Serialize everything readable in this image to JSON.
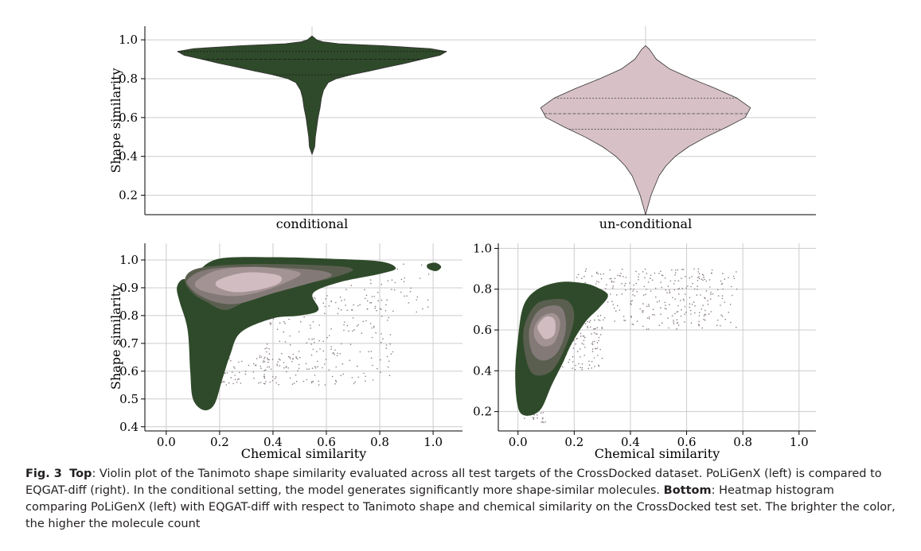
{
  "colors": {
    "conditional": "#2f4a2a",
    "unconditional": "#d7c1c6",
    "scatter": "#8a7d84",
    "grid": "#cccccc"
  },
  "chart_data": [
    {
      "type": "violin",
      "ylabel": "Shape similarity",
      "categories": [
        "conditional",
        "un-conditional"
      ],
      "yticks": [
        "0.2",
        "0.4",
        "0.6",
        "0.8",
        "1.0"
      ],
      "ylim": [
        0.1,
        1.07
      ],
      "series": [
        {
          "name": "conditional",
          "min": 0.41,
          "max": 1.02,
          "q1": 0.82,
          "median": 0.9,
          "q3": 0.94,
          "profile": [
            [
              0.41,
              0.0
            ],
            [
              0.45,
              0.02
            ],
            [
              0.5,
              0.025
            ],
            [
              0.55,
              0.035
            ],
            [
              0.6,
              0.045
            ],
            [
              0.65,
              0.06
            ],
            [
              0.7,
              0.07
            ],
            [
              0.74,
              0.085
            ],
            [
              0.78,
              0.12
            ],
            [
              0.8,
              0.18
            ],
            [
              0.82,
              0.29
            ],
            [
              0.84,
              0.43
            ],
            [
              0.86,
              0.56
            ],
            [
              0.88,
              0.7
            ],
            [
              0.9,
              0.82
            ],
            [
              0.92,
              0.95
            ],
            [
              0.94,
              1.0
            ],
            [
              0.955,
              0.88
            ],
            [
              0.97,
              0.52
            ],
            [
              0.98,
              0.2
            ],
            [
              0.99,
              0.08
            ],
            [
              1.0,
              0.035
            ],
            [
              1.02,
              0.0
            ]
          ]
        },
        {
          "name": "un-conditional",
          "min": 0.1,
          "max": 0.97,
          "q1": 0.54,
          "median": 0.62,
          "q3": 0.7,
          "profile": [
            [
              0.1,
              0.0
            ],
            [
              0.15,
              0.02
            ],
            [
              0.2,
              0.04
            ],
            [
              0.25,
              0.07
            ],
            [
              0.3,
              0.1
            ],
            [
              0.35,
              0.15
            ],
            [
              0.4,
              0.22
            ],
            [
              0.45,
              0.32
            ],
            [
              0.5,
              0.45
            ],
            [
              0.55,
              0.6
            ],
            [
              0.6,
              0.74
            ],
            [
              0.65,
              0.78
            ],
            [
              0.7,
              0.68
            ],
            [
              0.75,
              0.52
            ],
            [
              0.8,
              0.34
            ],
            [
              0.85,
              0.18
            ],
            [
              0.9,
              0.08
            ],
            [
              0.95,
              0.03
            ],
            [
              0.97,
              0.0
            ]
          ]
        }
      ]
    },
    {
      "type": "density",
      "xlabel": "Chemical similarity",
      "ylabel": "Shape similarity",
      "xticks": [
        "0.0",
        "0.2",
        "0.4",
        "0.6",
        "0.8",
        "1.0"
      ],
      "yticks": [
        "0.4",
        "0.5",
        "0.6",
        "0.7",
        "0.8",
        "0.9",
        "1.0"
      ],
      "xlim": [
        -0.08,
        1.11
      ],
      "ylim": [
        0.385,
        1.06
      ],
      "levels": [
        {
          "color": "#2f4a2a",
          "outline": [
            [
              0.1,
              0.93
            ],
            [
              0.12,
              0.96
            ],
            [
              0.2,
              1.005
            ],
            [
              0.4,
              1.01
            ],
            [
              0.6,
              1.005
            ],
            [
              0.8,
              0.995
            ],
            [
              0.86,
              0.97
            ],
            [
              0.8,
              0.95
            ],
            [
              0.65,
              0.92
            ],
            [
              0.55,
              0.88
            ],
            [
              0.57,
              0.82
            ],
            [
              0.5,
              0.8
            ],
            [
              0.4,
              0.79
            ],
            [
              0.28,
              0.74
            ],
            [
              0.24,
              0.66
            ],
            [
              0.21,
              0.57
            ],
            [
              0.18,
              0.48
            ],
            [
              0.14,
              0.46
            ],
            [
              0.1,
              0.5
            ],
            [
              0.09,
              0.6
            ],
            [
              0.08,
              0.75
            ],
            [
              0.05,
              0.85
            ],
            [
              0.04,
              0.9
            ],
            [
              0.06,
              0.93
            ]
          ]
        },
        {
          "color": "#2f4a2a",
          "outline": [
            [
              0.98,
              0.97
            ],
            [
              1.01,
              0.96
            ],
            [
              1.03,
              0.975
            ],
            [
              1.01,
              0.99
            ],
            [
              0.98,
              0.985
            ]
          ]
        },
        {
          "color": "#5a5e4f",
          "outline": [
            [
              0.07,
              0.93
            ],
            [
              0.12,
              0.97
            ],
            [
              0.3,
              0.985
            ],
            [
              0.6,
              0.98
            ],
            [
              0.7,
              0.965
            ],
            [
              0.6,
              0.93
            ],
            [
              0.45,
              0.9
            ],
            [
              0.3,
              0.85
            ],
            [
              0.22,
              0.82
            ],
            [
              0.15,
              0.85
            ],
            [
              0.1,
              0.88
            ]
          ]
        },
        {
          "color": "#837a78",
          "outline": [
            [
              0.08,
              0.93
            ],
            [
              0.15,
              0.965
            ],
            [
              0.3,
              0.975
            ],
            [
              0.55,
              0.965
            ],
            [
              0.62,
              0.945
            ],
            [
              0.55,
              0.92
            ],
            [
              0.4,
              0.88
            ],
            [
              0.28,
              0.845
            ],
            [
              0.2,
              0.845
            ],
            [
              0.13,
              0.87
            ],
            [
              0.09,
              0.9
            ]
          ]
        },
        {
          "color": "#a49394",
          "outline": [
            [
              0.12,
              0.93
            ],
            [
              0.2,
              0.965
            ],
            [
              0.35,
              0.975
            ],
            [
              0.5,
              0.955
            ],
            [
              0.45,
              0.92
            ],
            [
              0.35,
              0.885
            ],
            [
              0.25,
              0.87
            ],
            [
              0.15,
              0.885
            ],
            [
              0.11,
              0.905
            ]
          ]
        },
        {
          "color": "#d1bcc2",
          "outline": [
            [
              0.2,
              0.93
            ],
            [
              0.3,
              0.955
            ],
            [
              0.42,
              0.945
            ],
            [
              0.42,
              0.915
            ],
            [
              0.33,
              0.89
            ],
            [
              0.25,
              0.885
            ],
            [
              0.19,
              0.905
            ]
          ]
        }
      ],
      "scatter_regions": [
        {
          "x": [
            0.35,
            0.85
          ],
          "y": [
            0.55,
            0.88
          ],
          "n": 220
        },
        {
          "x": [
            0.15,
            0.5
          ],
          "y": [
            0.55,
            0.65
          ],
          "n": 90
        },
        {
          "x": [
            0.6,
            0.99
          ],
          "y": [
            0.8,
            0.99
          ],
          "n": 70
        }
      ]
    },
    {
      "type": "density",
      "xlabel": "Chemical similarity",
      "ylabel": "",
      "xticks": [
        "0.0",
        "0.2",
        "0.4",
        "0.6",
        "0.8",
        "1.0"
      ],
      "yticks": [
        "0.2",
        "0.4",
        "0.6",
        "0.8",
        "1.0"
      ],
      "xlim": [
        -0.07,
        1.06
      ],
      "ylim": [
        0.105,
        1.025
      ],
      "levels": [
        {
          "color": "#2f4a2a",
          "outline": [
            [
              0.0,
              0.56
            ],
            [
              0.02,
              0.72
            ],
            [
              0.07,
              0.8
            ],
            [
              0.15,
              0.835
            ],
            [
              0.23,
              0.83
            ],
            [
              0.28,
              0.81
            ],
            [
              0.32,
              0.77
            ],
            [
              0.29,
              0.71
            ],
            [
              0.24,
              0.64
            ],
            [
              0.19,
              0.53
            ],
            [
              0.16,
              0.44
            ],
            [
              0.12,
              0.33
            ],
            [
              0.08,
              0.21
            ],
            [
              0.03,
              0.18
            ],
            [
              0.0,
              0.22
            ],
            [
              -0.01,
              0.38
            ]
          ]
        },
        {
          "color": "#5a5e4f",
          "outline": [
            [
              0.02,
              0.6
            ],
            [
              0.06,
              0.72
            ],
            [
              0.12,
              0.75
            ],
            [
              0.18,
              0.74
            ],
            [
              0.2,
              0.66
            ],
            [
              0.17,
              0.52
            ],
            [
              0.12,
              0.4
            ],
            [
              0.06,
              0.38
            ],
            [
              0.03,
              0.45
            ]
          ]
        },
        {
          "color": "#837a78",
          "outline": [
            [
              0.04,
              0.6
            ],
            [
              0.07,
              0.69
            ],
            [
              0.12,
              0.72
            ],
            [
              0.16,
              0.7
            ],
            [
              0.17,
              0.6
            ],
            [
              0.14,
              0.49
            ],
            [
              0.09,
              0.45
            ],
            [
              0.05,
              0.49
            ]
          ]
        },
        {
          "color": "#a49394",
          "outline": [
            [
              0.06,
              0.62
            ],
            [
              0.09,
              0.67
            ],
            [
              0.13,
              0.68
            ],
            [
              0.15,
              0.63
            ],
            [
              0.13,
              0.54
            ],
            [
              0.09,
              0.52
            ],
            [
              0.06,
              0.56
            ]
          ]
        },
        {
          "color": "#d1bcc2",
          "outline": [
            [
              0.07,
              0.62
            ],
            [
              0.1,
              0.665
            ],
            [
              0.13,
              0.65
            ],
            [
              0.13,
              0.58
            ],
            [
              0.1,
              0.555
            ],
            [
              0.08,
              0.58
            ]
          ]
        }
      ],
      "scatter_regions": [
        {
          "x": [
            0.2,
            0.78
          ],
          "y": [
            0.6,
            0.9
          ],
          "n": 320
        },
        {
          "x": [
            0.15,
            0.3
          ],
          "y": [
            0.4,
            0.65
          ],
          "n": 90
        },
        {
          "x": [
            0.02,
            0.1
          ],
          "y": [
            0.14,
            0.22
          ],
          "n": 25
        }
      ]
    }
  ],
  "caption": {
    "fig_label": "Fig. 3",
    "top_label": "Top",
    "top_text": ": Violin plot of the Tanimoto shape similarity evaluated across all test targets of the CrossDocked dataset. PoLiGenX (left) is compared to EQGAT-diff (right). In the conditional setting, the model generates significantly more shape-similar molecules. ",
    "bottom_label": "Bottom",
    "bottom_text": ": Heatmap histogram comparing PoLiGenX (left) with EQGAT-diff with respect to Tanimoto shape and chemical similarity on the CrossDocked test set. The brighter the color, the higher the molecule count"
  }
}
